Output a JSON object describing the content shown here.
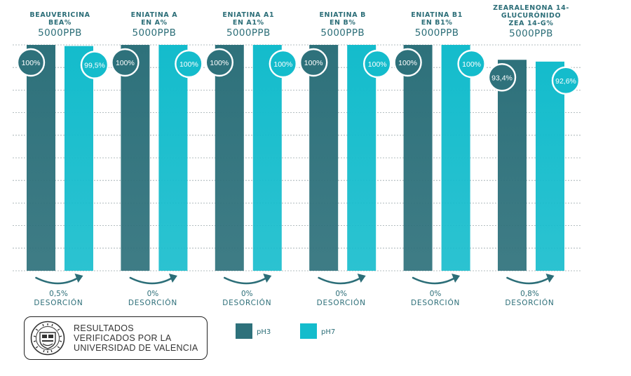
{
  "chart_data": {
    "type": "bar",
    "categories": [
      {
        "title": [
          "BEAUVERICINA",
          "BEA%"
        ],
        "dose": "5000PPB"
      },
      {
        "title": [
          "ENIATINA A",
          "EN A%"
        ],
        "dose": "5000PPB"
      },
      {
        "title": [
          "ENIATINA A1",
          "EN A1%"
        ],
        "dose": "5000PPB"
      },
      {
        "title": [
          "ENIATINA B",
          "EN B%"
        ],
        "dose": "5000PPB"
      },
      {
        "title": [
          "ENIATINA B1",
          "EN B1%"
        ],
        "dose": "5000PPB"
      },
      {
        "title": [
          "ZEARALENONA 14-",
          "GLUCURÓNIDO",
          "ZEA 14-G%"
        ],
        "dose": "5000PPB"
      }
    ],
    "series": [
      {
        "name": "pH3",
        "color": "#2e717b",
        "values": [
          100,
          100,
          100,
          100,
          100,
          93.4
        ],
        "labels": [
          "100%",
          "100%",
          "100%",
          "100%",
          "100%",
          "93,4%"
        ]
      },
      {
        "name": "pH7",
        "color": "#14bccc",
        "values": [
          99.5,
          100,
          100,
          100,
          100,
          92.6
        ],
        "labels": [
          "99,5%",
          "100%",
          "100%",
          "100%",
          "100%",
          "92,6%"
        ]
      }
    ],
    "desorption": {
      "values": [
        "0,5%",
        "0%",
        "0%",
        "0%",
        "0%",
        "0,8%"
      ],
      "label": "DESORCIÓN"
    },
    "ylim": [
      0,
      100
    ],
    "grid": true,
    "legend": "bottom-center",
    "title": "",
    "xlabel": "",
    "ylabel": ""
  },
  "verification": {
    "lines": [
      "RESULTADOS",
      "VERIFICADOS POR LA",
      "UNIVERSIDAD DE VALENCIA"
    ],
    "seal_text": "UNIVERSITAT DE VALÈNCIA"
  },
  "colors": {
    "text": "#2c6e78",
    "grid": "#9aa7ab",
    "arrow": "#2c6e78"
  }
}
